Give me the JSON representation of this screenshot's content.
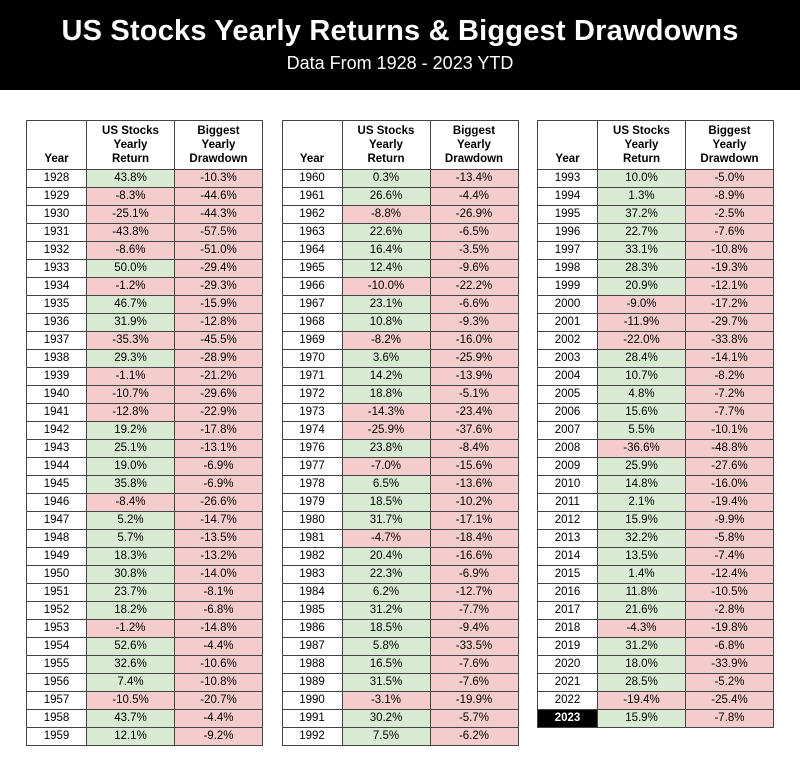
{
  "table_headers": {
    "year": "Year",
    "us_return": "US Stocks\nYearly\nReturn",
    "drawdown": "Biggest\nYearly\nDrawdown"
  },
  "colors": {
    "positive": "#d9ead3",
    "negative": "#f4cccc",
    "banner_bg": "#000000",
    "banner_fg": "#ffffff",
    "grid": "#444444",
    "highlight_year_bg": "#000000",
    "highlight_year_fg": "#ffffff"
  },
  "chart_data": {
    "type": "table",
    "title": "US Stocks Yearly Returns & Biggest Drawdowns",
    "subtitle": "Data From 1928 - 2023 YTD",
    "columns": [
      "Year",
      "US Stocks Yearly Return",
      "Biggest Yearly Drawdown"
    ],
    "highlight_year": "2023",
    "tables": [
      {
        "rows": [
          [
            "1928",
            "43.8%",
            "-10.3%"
          ],
          [
            "1929",
            "-8.3%",
            "-44.6%"
          ],
          [
            "1930",
            "-25.1%",
            "-44.3%"
          ],
          [
            "1931",
            "-43.8%",
            "-57.5%"
          ],
          [
            "1932",
            "-8.6%",
            "-51.0%"
          ],
          [
            "1933",
            "50.0%",
            "-29.4%"
          ],
          [
            "1934",
            "-1.2%",
            "-29.3%"
          ],
          [
            "1935",
            "46.7%",
            "-15.9%"
          ],
          [
            "1936",
            "31.9%",
            "-12.8%"
          ],
          [
            "1937",
            "-35.3%",
            "-45.5%"
          ],
          [
            "1938",
            "29.3%",
            "-28.9%"
          ],
          [
            "1939",
            "-1.1%",
            "-21.2%"
          ],
          [
            "1940",
            "-10.7%",
            "-29.6%"
          ],
          [
            "1941",
            "-12.8%",
            "-22.9%"
          ],
          [
            "1942",
            "19.2%",
            "-17.8%"
          ],
          [
            "1943",
            "25.1%",
            "-13.1%"
          ],
          [
            "1944",
            "19.0%",
            "-6.9%"
          ],
          [
            "1945",
            "35.8%",
            "-6.9%"
          ],
          [
            "1946",
            "-8.4%",
            "-26.6%"
          ],
          [
            "1947",
            "5.2%",
            "-14.7%"
          ],
          [
            "1948",
            "5.7%",
            "-13.5%"
          ],
          [
            "1949",
            "18.3%",
            "-13.2%"
          ],
          [
            "1950",
            "30.8%",
            "-14.0%"
          ],
          [
            "1951",
            "23.7%",
            "-8.1%"
          ],
          [
            "1952",
            "18.2%",
            "-6.8%"
          ],
          [
            "1953",
            "-1.2%",
            "-14.8%"
          ],
          [
            "1954",
            "52.6%",
            "-4.4%"
          ],
          [
            "1955",
            "32.6%",
            "-10.6%"
          ],
          [
            "1956",
            "7.4%",
            "-10.8%"
          ],
          [
            "1957",
            "-10.5%",
            "-20.7%"
          ],
          [
            "1958",
            "43.7%",
            "-4.4%"
          ],
          [
            "1959",
            "12.1%",
            "-9.2%"
          ]
        ]
      },
      {
        "rows": [
          [
            "1960",
            "0.3%",
            "-13.4%"
          ],
          [
            "1961",
            "26.6%",
            "-4.4%"
          ],
          [
            "1962",
            "-8.8%",
            "-26.9%"
          ],
          [
            "1963",
            "22.6%",
            "-6.5%"
          ],
          [
            "1964",
            "16.4%",
            "-3.5%"
          ],
          [
            "1965",
            "12.4%",
            "-9.6%"
          ],
          [
            "1966",
            "-10.0%",
            "-22.2%"
          ],
          [
            "1967",
            "23.1%",
            "-6.6%"
          ],
          [
            "1968",
            "10.8%",
            "-9.3%"
          ],
          [
            "1969",
            "-8.2%",
            "-16.0%"
          ],
          [
            "1970",
            "3.6%",
            "-25.9%"
          ],
          [
            "1971",
            "14.2%",
            "-13.9%"
          ],
          [
            "1972",
            "18.8%",
            "-5.1%"
          ],
          [
            "1973",
            "-14.3%",
            "-23.4%"
          ],
          [
            "1974",
            "-25.9%",
            "-37.6%"
          ],
          [
            "1976",
            "23.8%",
            "-8.4%"
          ],
          [
            "1977",
            "-7.0%",
            "-15.6%"
          ],
          [
            "1978",
            "6.5%",
            "-13.6%"
          ],
          [
            "1979",
            "18.5%",
            "-10.2%"
          ],
          [
            "1980",
            "31.7%",
            "-17.1%"
          ],
          [
            "1981",
            "-4.7%",
            "-18.4%"
          ],
          [
            "1982",
            "20.4%",
            "-16.6%"
          ],
          [
            "1983",
            "22.3%",
            "-6.9%"
          ],
          [
            "1984",
            "6.2%",
            "-12.7%"
          ],
          [
            "1985",
            "31.2%",
            "-7.7%"
          ],
          [
            "1986",
            "18.5%",
            "-9.4%"
          ],
          [
            "1987",
            "5.8%",
            "-33.5%"
          ],
          [
            "1988",
            "16.5%",
            "-7.6%"
          ],
          [
            "1989",
            "31.5%",
            "-7.6%"
          ],
          [
            "1990",
            "-3.1%",
            "-19.9%"
          ],
          [
            "1991",
            "30.2%",
            "-5.7%"
          ],
          [
            "1992",
            "7.5%",
            "-6.2%"
          ]
        ]
      },
      {
        "rows": [
          [
            "1993",
            "10.0%",
            "-5.0%"
          ],
          [
            "1994",
            "1.3%",
            "-8.9%"
          ],
          [
            "1995",
            "37.2%",
            "-2.5%"
          ],
          [
            "1996",
            "22.7%",
            "-7.6%"
          ],
          [
            "1997",
            "33.1%",
            "-10.8%"
          ],
          [
            "1998",
            "28.3%",
            "-19.3%"
          ],
          [
            "1999",
            "20.9%",
            "-12.1%"
          ],
          [
            "2000",
            "-9.0%",
            "-17.2%"
          ],
          [
            "2001",
            "-11.9%",
            "-29.7%"
          ],
          [
            "2002",
            "-22.0%",
            "-33.8%"
          ],
          [
            "2003",
            "28.4%",
            "-14.1%"
          ],
          [
            "2004",
            "10.7%",
            "-8.2%"
          ],
          [
            "2005",
            "4.8%",
            "-7.2%"
          ],
          [
            "2006",
            "15.6%",
            "-7.7%"
          ],
          [
            "2007",
            "5.5%",
            "-10.1%"
          ],
          [
            "2008",
            "-36.6%",
            "-48.8%"
          ],
          [
            "2009",
            "25.9%",
            "-27.6%"
          ],
          [
            "2010",
            "14.8%",
            "-16.0%"
          ],
          [
            "2011",
            "2.1%",
            "-19.4%"
          ],
          [
            "2012",
            "15.9%",
            "-9.9%"
          ],
          [
            "2013",
            "32.2%",
            "-5.8%"
          ],
          [
            "2014",
            "13.5%",
            "-7.4%"
          ],
          [
            "2015",
            "1.4%",
            "-12.4%"
          ],
          [
            "2016",
            "11.8%",
            "-10.5%"
          ],
          [
            "2017",
            "21.6%",
            "-2.8%"
          ],
          [
            "2018",
            "-4.3%",
            "-19.8%"
          ],
          [
            "2019",
            "31.2%",
            "-6.8%"
          ],
          [
            "2020",
            "18.0%",
            "-33.9%"
          ],
          [
            "2021",
            "28.5%",
            "-5.2%"
          ],
          [
            "2022",
            "-19.4%",
            "-25.4%"
          ],
          [
            "2023",
            "15.9%",
            "-7.8%"
          ]
        ]
      }
    ]
  }
}
